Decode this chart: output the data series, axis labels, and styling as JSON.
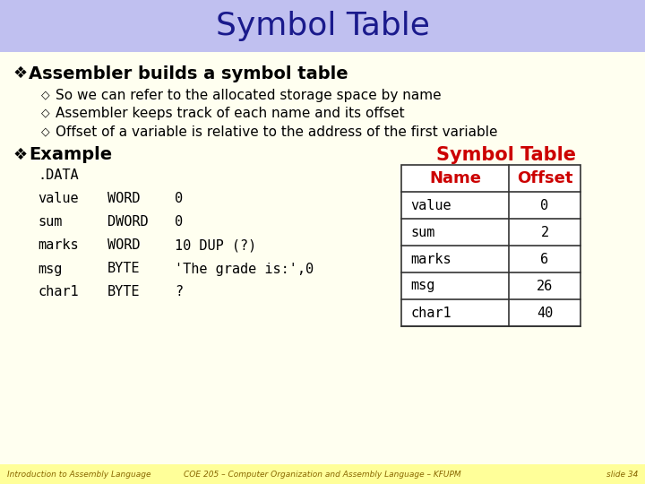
{
  "title": "Symbol Table",
  "title_color": "#1a1a8c",
  "title_bg_color": "#c0c0f0",
  "slide_bg_color": "#fffff0",
  "body_text_color": "#000000",
  "bullet_main_color": "#000000",
  "bullet1": "Assembler builds a symbol table",
  "bullet1_sub": [
    "So we can refer to the allocated storage space by name",
    "Assembler keeps track of each name and its offset",
    "Offset of a variable is relative to the address of the first variable"
  ],
  "bullet2": "Example",
  "code_lines": [
    [
      ".DATA",
      "",
      ""
    ],
    [
      "value",
      "WORD",
      "0"
    ],
    [
      "sum",
      "DWORD",
      "0"
    ],
    [
      "marks",
      "WORD",
      "10 DUP (?)"
    ],
    [
      "msg",
      "BYTE",
      "'The grade is:',0"
    ],
    [
      "char1",
      "BYTE",
      "?"
    ]
  ],
  "symbol_table_title": "Symbol Table",
  "symbol_table_title_color": "#cc0000",
  "symbol_table_header": [
    "Name",
    "Offset"
  ],
  "symbol_table_header_color": "#cc0000",
  "symbol_table_rows": [
    [
      "value",
      "0"
    ],
    [
      "sum",
      "2"
    ],
    [
      "marks",
      "6"
    ],
    [
      "msg",
      "26"
    ],
    [
      "char1",
      "40"
    ]
  ],
  "symbol_table_border_color": "#333333",
  "footer_left": "Introduction to Assembly Language",
  "footer_center": "COE 205 – Computer Organization and Assembly Language – KFUPM",
  "footer_right": "slide 34",
  "footer_color": "#886600",
  "footer_bg_color": "#ffff99"
}
